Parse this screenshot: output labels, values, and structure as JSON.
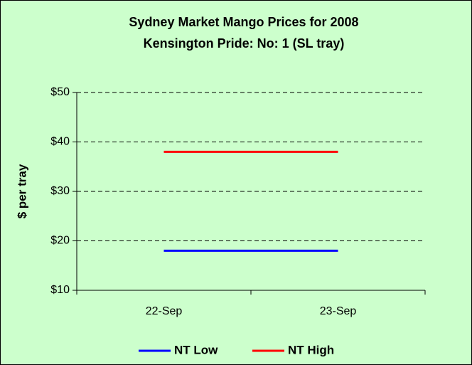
{
  "chart_data": {
    "type": "line",
    "title": "Sydney Market Mango Prices for 2008",
    "subtitle": "Kensington Pride: No: 1 (SL tray)",
    "y_label": "$ per tray",
    "categories": [
      "22-Sep",
      "23-Sep"
    ],
    "series": [
      {
        "name": "NT Low",
        "color": "#0000ff",
        "values": [
          18,
          18
        ]
      },
      {
        "name": "NT High",
        "color": "#ff0000",
        "values": [
          38,
          38
        ]
      }
    ],
    "ylim": [
      10,
      50
    ],
    "yticks": [
      {
        "value": 10,
        "label": "$10"
      },
      {
        "value": 20,
        "label": "$20"
      },
      {
        "value": 30,
        "label": "$30"
      },
      {
        "value": 40,
        "label": "$40"
      },
      {
        "value": 50,
        "label": "$50"
      }
    ],
    "grid": true,
    "legend": "bottom"
  }
}
